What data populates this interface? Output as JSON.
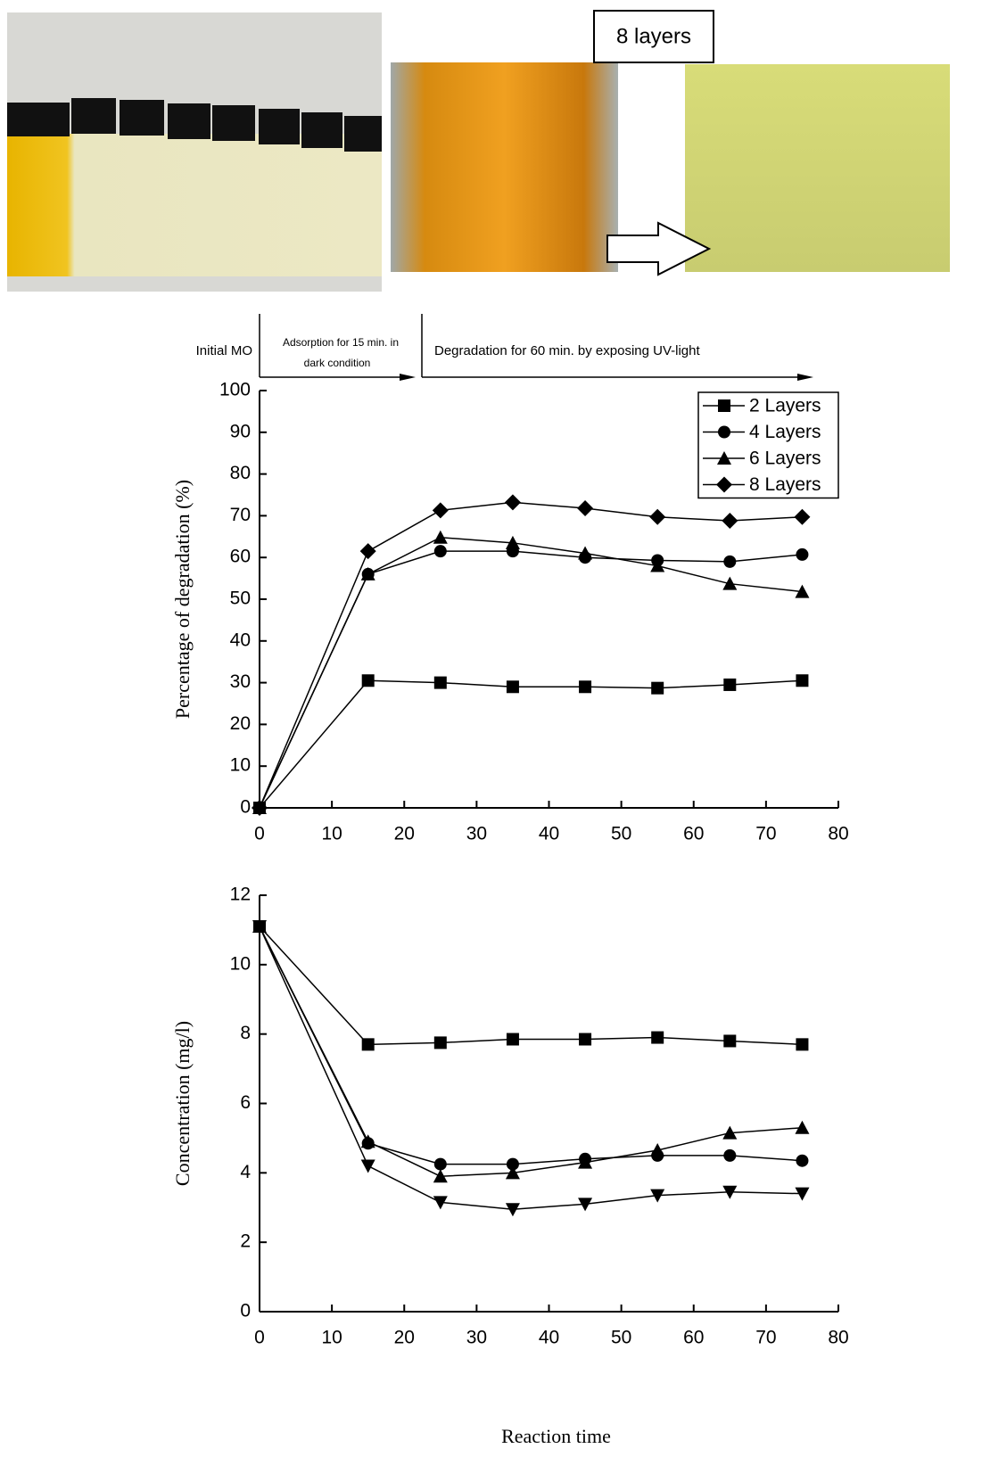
{
  "photo_label": "8 layers",
  "annotations": [
    "Initial MO",
    "Adsorption for 15 min. in",
    "dark condition",
    "Degradation for 60 min. by exposing UV-light"
  ],
  "chart_data": [
    {
      "type": "line",
      "ylabel": "Percentage of degradation (%)",
      "x": [
        0,
        15,
        25,
        35,
        45,
        55,
        65,
        75
      ],
      "series": [
        {
          "name": "2 Layers",
          "color": "#000000",
          "marker": "square",
          "values": [
            0,
            30.5,
            30,
            29,
            29,
            28.7,
            29.5,
            30.5
          ]
        },
        {
          "name": "4 Layers",
          "color": "#000000",
          "marker": "circle",
          "values": [
            0,
            56,
            61.5,
            61.5,
            60,
            59.3,
            59,
            60.7
          ]
        },
        {
          "name": "6 Layers",
          "color": "#000000",
          "marker": "triangle",
          "values": [
            0,
            56,
            64.8,
            63.5,
            61,
            58,
            53.7,
            51.8
          ]
        },
        {
          "name": "8 Layers",
          "color": "#000000",
          "marker": "diamond",
          "values": [
            0,
            61.5,
            71.3,
            73.2,
            71.8,
            69.7,
            68.8,
            69.7
          ]
        }
      ],
      "xlim": [
        0,
        80
      ],
      "xticks": [
        0,
        10,
        20,
        30,
        40,
        50,
        60,
        70,
        80
      ],
      "ylim": [
        0,
        100
      ],
      "yticks": [
        0,
        10,
        20,
        30,
        40,
        50,
        60,
        70,
        80,
        90,
        100
      ],
      "legend": "upper-right"
    },
    {
      "type": "line",
      "ylabel": "Concentration (mg/l)",
      "xlabel": "Reaction time",
      "x": [
        0,
        15,
        25,
        35,
        45,
        55,
        65,
        75
      ],
      "series": [
        {
          "color": "#000000",
          "marker": "square",
          "values": [
            11.1,
            7.7,
            7.75,
            7.85,
            7.85,
            7.9,
            7.8,
            7.7
          ]
        },
        {
          "color": "#000000",
          "marker": "circle",
          "values": [
            11.1,
            4.85,
            4.25,
            4.25,
            4.4,
            4.5,
            4.5,
            4.35
          ]
        },
        {
          "color": "#000000",
          "marker": "triangle",
          "values": [
            11.1,
            4.9,
            3.9,
            4.0,
            4.3,
            4.65,
            5.15,
            5.3
          ]
        },
        {
          "color": "#000000",
          "marker": "triangle-down",
          "values": [
            11.1,
            4.2,
            3.15,
            2.95,
            3.1,
            3.35,
            3.45,
            3.4
          ]
        }
      ],
      "xlim": [
        0,
        80
      ],
      "xticks": [
        0,
        10,
        20,
        30,
        40,
        50,
        60,
        70,
        80
      ],
      "ylim": [
        0,
        12
      ],
      "yticks": [
        0,
        2,
        4,
        6,
        8,
        10,
        12
      ]
    }
  ]
}
